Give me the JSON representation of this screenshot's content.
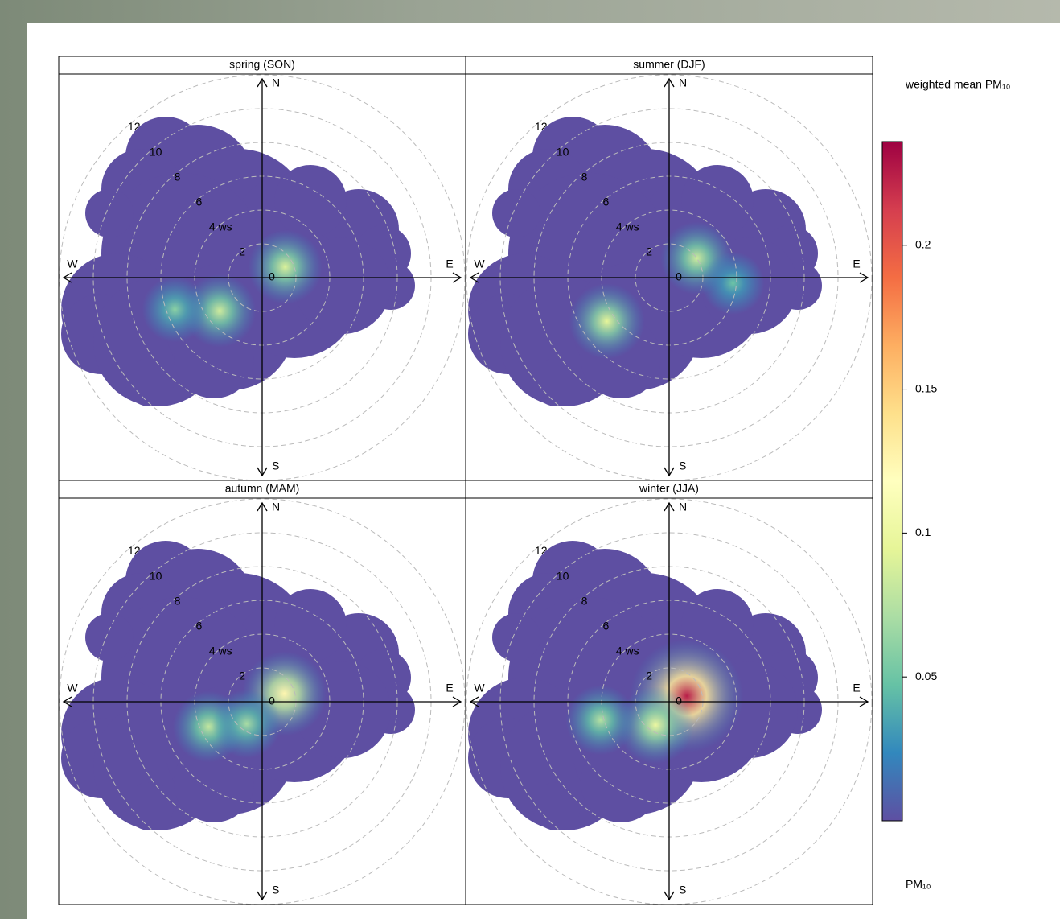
{
  "chart_data": {
    "type": "polar",
    "panels": [
      {
        "title": "spring (SON)",
        "hotspots": [
          {
            "wd": 65,
            "ws": 1.5,
            "value": 0.09
          },
          {
            "wd": 232,
            "ws": 3.2,
            "value": 0.085
          },
          {
            "wd": 250,
            "ws": 5.5,
            "value": 0.06
          }
        ]
      },
      {
        "title": "summer (DJF)",
        "hotspots": [
          {
            "wd": 55,
            "ws": 2,
            "value": 0.085
          },
          {
            "wd": 235,
            "ws": 4.5,
            "value": 0.095
          },
          {
            "wd": 95,
            "ws": 3.8,
            "value": 0.05
          }
        ]
      },
      {
        "title": "autumn (MAM)",
        "hotspots": [
          {
            "wd": 70,
            "ws": 1.4,
            "value": 0.125
          },
          {
            "wd": 245,
            "ws": 3.5,
            "value": 0.08
          },
          {
            "wd": 215,
            "ws": 1.6,
            "value": 0.07
          }
        ]
      },
      {
        "title": "winter (JJA)",
        "hotspots": [
          {
            "wd": 72,
            "ws": 1.1,
            "value": 0.225
          },
          {
            "wd": 210,
            "ws": 1.6,
            "value": 0.1
          },
          {
            "wd": 255,
            "ws": 4.2,
            "value": 0.075
          }
        ]
      }
    ],
    "directions": [
      "N",
      "E",
      "S",
      "W"
    ],
    "rlim": [
      0,
      12
    ],
    "rticks": [
      0,
      2,
      {
        "value": 4,
        "label": "4 ws"
      },
      6,
      8,
      10,
      12
    ],
    "legend_title": "weighted mean PM₁₀",
    "colorbar_label": "PM₁₀",
    "clim": [
      0,
      0.236
    ],
    "cticks": [
      0.05,
      0.1,
      0.15,
      0.2
    ],
    "colors": [
      "#5E4FA2",
      "#3288BD",
      "#66C2A5",
      "#ABDDA4",
      "#E6F598",
      "#FFFFBF",
      "#FEE08B",
      "#FDAE61",
      "#F46D43",
      "#D53E4F",
      "#9E0142"
    ]
  }
}
